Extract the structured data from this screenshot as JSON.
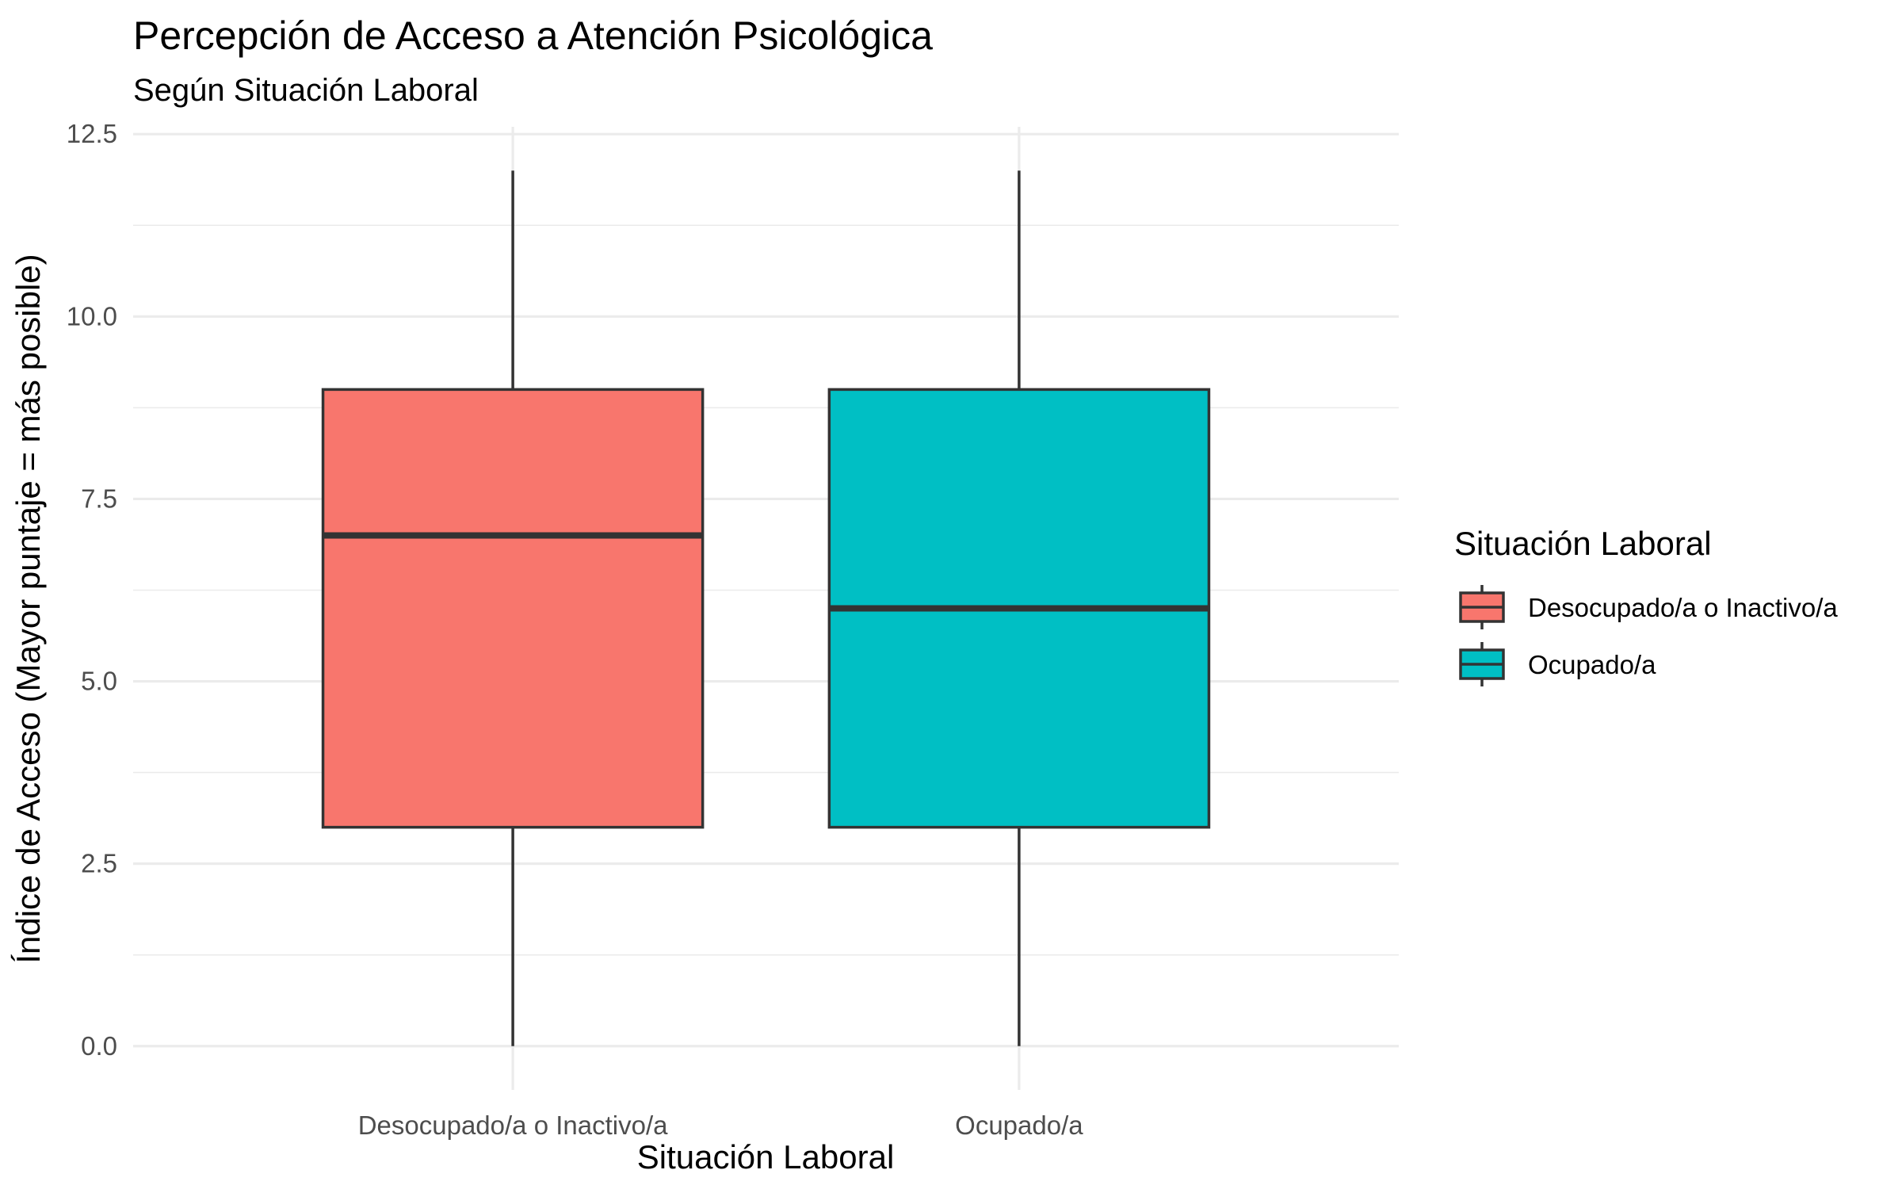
{
  "chart_data": {
    "type": "boxplot",
    "title": "Percepción de Acceso a Atención Psicológica",
    "subtitle": "Según Situación Laboral",
    "xlabel": "Situación Laboral",
    "ylabel": "Índice de Acceso (Mayor puntaje = más posible)",
    "ylim": [
      -0.6,
      12.6
    ],
    "yticks": [
      0,
      2.5,
      5,
      7.5,
      10,
      12.5
    ],
    "ytick_labels": [
      "0.0",
      "2.5",
      "5.0",
      "7.5",
      "10.0",
      "12.5"
    ],
    "yminor": [
      1.25,
      3.75,
      6.25,
      8.75,
      11.25
    ],
    "grid": true,
    "categories": [
      "Desocupado/a o Inactivo/a",
      "Ocupado/a"
    ],
    "boxes": [
      {
        "category": "Desocupado/a o Inactivo/a",
        "min": 0,
        "q1": 3,
        "median": 7,
        "q3": 9,
        "max": 12,
        "color": "#F8766D"
      },
      {
        "category": "Ocupado/a",
        "min": 0,
        "q1": 3,
        "median": 6,
        "q3": 9,
        "max": 12,
        "color": "#00BFC4"
      }
    ],
    "legend": {
      "title": "Situación Laboral",
      "position": "right",
      "entries": [
        {
          "label": "Desocupado/a o Inactivo/a",
          "color": "#F8766D"
        },
        {
          "label": "Ocupado/a",
          "color": "#00BFC4"
        }
      ]
    }
  }
}
